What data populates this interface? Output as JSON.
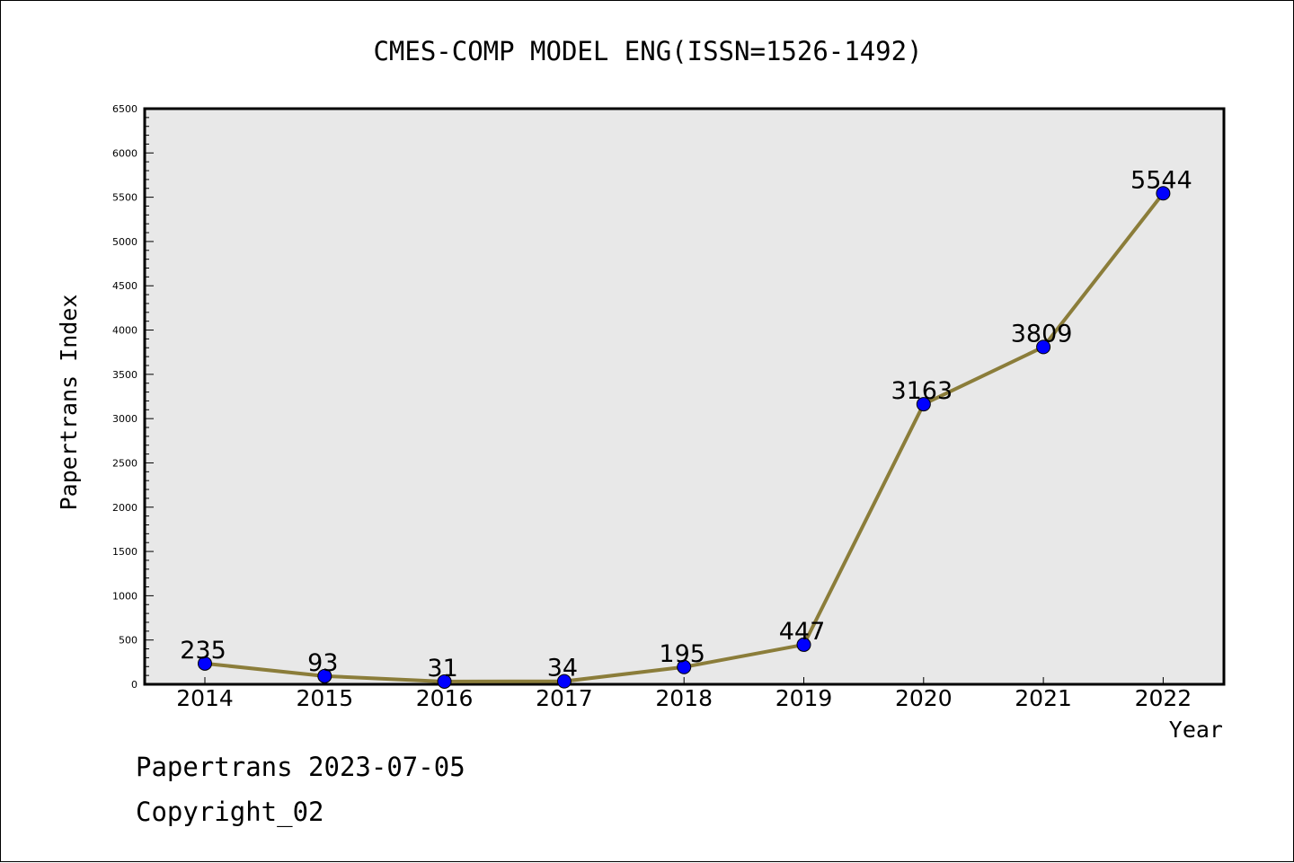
{
  "chart_data": {
    "type": "line",
    "title": "CMES-COMP MODEL ENG(ISSN=1526-1492)",
    "xlabel": "Year",
    "ylabel": "Papertrans Index",
    "categories": [
      "2014",
      "2015",
      "2016",
      "2017",
      "2018",
      "2019",
      "2020",
      "2021",
      "2022"
    ],
    "values": [
      235,
      93,
      31,
      34,
      195,
      447,
      3163,
      3809,
      5544
    ],
    "data_labels": [
      "235",
      "93",
      "31",
      "34",
      "195",
      "447",
      "3163",
      "3809",
      "5544"
    ],
    "ylim": [
      0,
      6500
    ],
    "y_ticks": [
      "0",
      "500",
      "1000",
      "1500",
      "2000",
      "2500",
      "3000",
      "3500",
      "4000",
      "4500",
      "5000",
      "5500",
      "6000",
      "6500"
    ],
    "line_color": "#8b7d3a",
    "marker_color": "#0000ff",
    "plot_background": "#e8e8e8",
    "grid": false,
    "legend": "none"
  },
  "footer": {
    "line1": "Papertrans 2023-07-05",
    "line2": "Copyright_02"
  }
}
